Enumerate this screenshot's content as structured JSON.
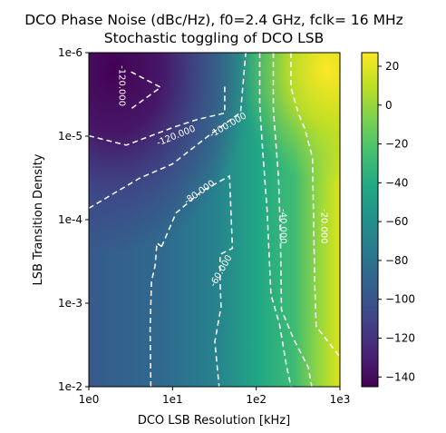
{
  "chart_data": {
    "type": "heatmap",
    "title": "DCO Phase Noise (dBc/Hz), f0=2.4 GHz, fclk= 16 MHz",
    "subtitle": "Stochastic toggling of DCO LSB",
    "xlabel": "DCO LSB Resolution [kHz]",
    "ylabel": "LSB Transition Density",
    "x_scale": "log",
    "y_scale": "log",
    "xlim": [
      1,
      1000
    ],
    "ylim": [
      0.01,
      1e-06
    ],
    "x_ticks": [
      1,
      10,
      100,
      1000
    ],
    "x_tick_labels": [
      "1e0",
      "1e1",
      "1e2",
      "1e3"
    ],
    "y_ticks": [
      1e-06,
      1e-05,
      0.0001,
      0.001,
      0.01
    ],
    "y_tick_labels": [
      "1e-6",
      "1e-5",
      "1e-4",
      "1e-3",
      "1e-2"
    ],
    "colormap": "viridis",
    "colorbar": {
      "range": [
        -145,
        27
      ],
      "ticks": [
        20,
        0,
        -20,
        -40,
        -60,
        -80,
        -100,
        -120,
        -140
      ],
      "tick_labels": [
        "20",
        "0",
        "−20",
        "−40",
        "−60",
        "−80",
        "−100",
        "−120",
        "−140"
      ]
    },
    "grid": false,
    "contour_style": "white dashed",
    "contours": [
      {
        "level": -120,
        "label": "-120.000",
        "points": [
          [
            1,
            9.9e-06
          ],
          [
            2.8,
            1.28e-05
          ],
          [
            10,
            7.9e-06
          ],
          [
            20,
            6.3e-06
          ],
          [
            42,
            5.3e-06
          ],
          [
            42,
            2.5e-06
          ]
        ]
      },
      {
        "level": -120,
        "label": "-120.000",
        "points": [
          [
            3.2,
            1.7e-06
          ],
          [
            7.2,
            2.6e-06
          ],
          [
            3.2,
            4.7e-06
          ]
        ]
      },
      {
        "level": -100,
        "label": "-100.000",
        "points": [
          [
            1,
            7.3e-05
          ],
          [
            4,
            3.2e-05
          ],
          [
            10,
            2.15e-05
          ],
          [
            28,
            9.6e-06
          ],
          [
            65,
            5.2e-06
          ],
          [
            75,
            1e-06
          ]
        ]
      },
      {
        "level": -80,
        "label": "-80.000",
        "points": [
          [
            7.4,
            0.00021
          ],
          [
            11,
            8.3e-05
          ],
          [
            22,
            4.6e-05
          ],
          [
            48,
            3e-05
          ],
          [
            52,
            0.00022
          ],
          [
            37,
            0.00026
          ],
          [
            37,
            0.00057
          ],
          [
            38,
            0.0011
          ],
          [
            32,
            0.0029
          ],
          [
            36,
            0.01
          ]
        ]
      },
      {
        "level": -60,
        "label": "-60.000",
        "points": [
          [
            5.5,
            0.01
          ],
          [
            5.4,
            0.0021
          ],
          [
            5.6,
            0.00055
          ],
          [
            6.2,
            0.00035
          ],
          [
            6.5,
            0.00019
          ],
          [
            7.4,
            0.00021
          ]
        ]
      },
      {
        "level": -40,
        "label": "-40.000",
        "points": [
          [
            110,
            1e-06
          ],
          [
            110,
            4.3e-06
          ],
          [
            120,
            1.6e-05
          ],
          [
            135,
            7.8e-05
          ],
          [
            150,
            0.00079
          ],
          [
            190,
            0.0018
          ],
          [
            230,
            0.0057
          ],
          [
            260,
            0.01
          ]
        ]
      },
      {
        "level": -20,
        "label": "-20.000",
        "points": [
          [
            260,
            1e-06
          ],
          [
            260,
            2.6e-06
          ],
          [
            320,
            5.4e-06
          ],
          [
            380,
            8.1e-06
          ],
          [
            470,
            1.8e-05
          ],
          [
            500,
            0.00059
          ],
          [
            520,
            0.0019
          ],
          [
            800,
            0.0033
          ],
          [
            1000,
            0.0044
          ]
        ]
      },
      {
        "level": -30,
        "label": "",
        "points": [
          [
            160,
            1e-06
          ],
          [
            160,
            4.7e-06
          ],
          [
            185,
            3.2e-05
          ],
          [
            195,
            0.00016
          ],
          [
            200,
            0.0012
          ],
          [
            280,
            0.0027
          ],
          [
            420,
            0.0059
          ],
          [
            460,
            0.01
          ]
        ]
      }
    ],
    "contour_labels": [
      {
        "text": "-120.000",
        "x": 2.5,
        "y": 2.5e-06,
        "angle": 90
      },
      {
        "text": "-120.000",
        "x": 11,
        "y": 9.9e-06,
        "angle": -22
      },
      {
        "text": "-100.000",
        "x": 46,
        "y": 7.4e-06,
        "angle": -30
      },
      {
        "text": "-80.000",
        "x": 21,
        "y": 4.7e-05,
        "angle": -35
      },
      {
        "text": "-60.000",
        "x": 38,
        "y": 0.00041,
        "angle": -60
      },
      {
        "text": "-40.000",
        "x": 210,
        "y": 0.00012,
        "angle": 90
      },
      {
        "text": "-20.000",
        "x": 650,
        "y": 0.00012,
        "angle": 90
      }
    ]
  }
}
